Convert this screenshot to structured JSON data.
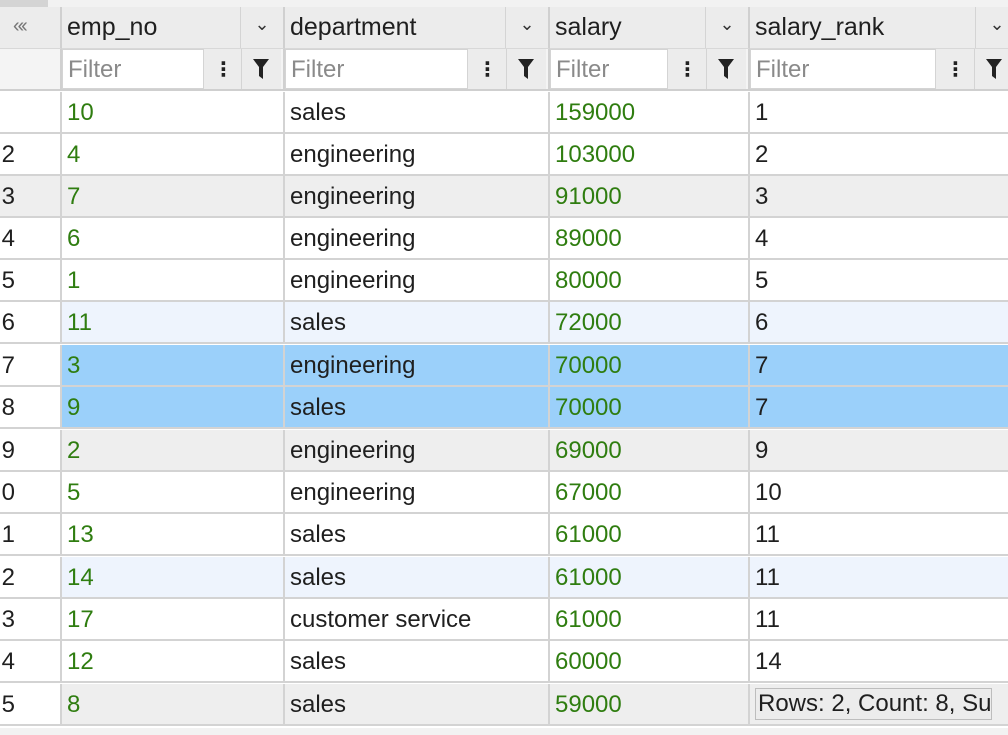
{
  "header": {
    "collapse_glyph": "«‹",
    "columns": [
      {
        "label": "emp_no",
        "dropdown_icon": "chevron-down-icon"
      },
      {
        "label": "department",
        "dropdown_icon": "chevron-down-icon"
      },
      {
        "label": "salary",
        "dropdown_icon": "chevron-down-icon"
      },
      {
        "label": "salary_rank",
        "dropdown_icon": "chevron-down-icon"
      }
    ]
  },
  "filters": {
    "placeholder": "Filter",
    "values": [
      "",
      "",
      "",
      ""
    ]
  },
  "colors": {
    "numeric_text": "#2f7d10",
    "selection": "#9bd0fa",
    "header_bg": "#ececec"
  },
  "rows": [
    {
      "rn": "",
      "emp_no": "10",
      "department": "sales",
      "salary": "159000",
      "salary_rank": "1"
    },
    {
      "rn": "2",
      "emp_no": "4",
      "department": "engineering",
      "salary": "103000",
      "salary_rank": "2"
    },
    {
      "rn": "3",
      "emp_no": "7",
      "department": "engineering",
      "salary": "91000",
      "salary_rank": "3"
    },
    {
      "rn": "4",
      "emp_no": "6",
      "department": "engineering",
      "salary": "89000",
      "salary_rank": "4"
    },
    {
      "rn": "5",
      "emp_no": "1",
      "department": "engineering",
      "salary": "80000",
      "salary_rank": "5"
    },
    {
      "rn": "6",
      "emp_no": "11",
      "department": "sales",
      "salary": "72000",
      "salary_rank": "6"
    },
    {
      "rn": "7",
      "emp_no": "3",
      "department": "engineering",
      "salary": "70000",
      "salary_rank": "7"
    },
    {
      "rn": "8",
      "emp_no": "9",
      "department": "sales",
      "salary": "70000",
      "salary_rank": "7"
    },
    {
      "rn": "9",
      "emp_no": "2",
      "department": "engineering",
      "salary": "69000",
      "salary_rank": "9"
    },
    {
      "rn": "0",
      "emp_no": "5",
      "department": "engineering",
      "salary": "67000",
      "salary_rank": "10"
    },
    {
      "rn": "1",
      "emp_no": "13",
      "department": "sales",
      "salary": "61000",
      "salary_rank": "11"
    },
    {
      "rn": "2",
      "emp_no": "14",
      "department": "sales",
      "salary": "61000",
      "salary_rank": "11"
    },
    {
      "rn": "3",
      "emp_no": "17",
      "department": "customer service",
      "salary": "61000",
      "salary_rank": "11"
    },
    {
      "rn": "4",
      "emp_no": "12",
      "department": "sales",
      "salary": "60000",
      "salary_rank": "14"
    },
    {
      "rn": "5",
      "emp_no": "8",
      "department": "sales",
      "salary": "59000",
      "salary_rank": ""
    }
  ],
  "status_tooltip": "Rows: 2, Count: 8, Su"
}
